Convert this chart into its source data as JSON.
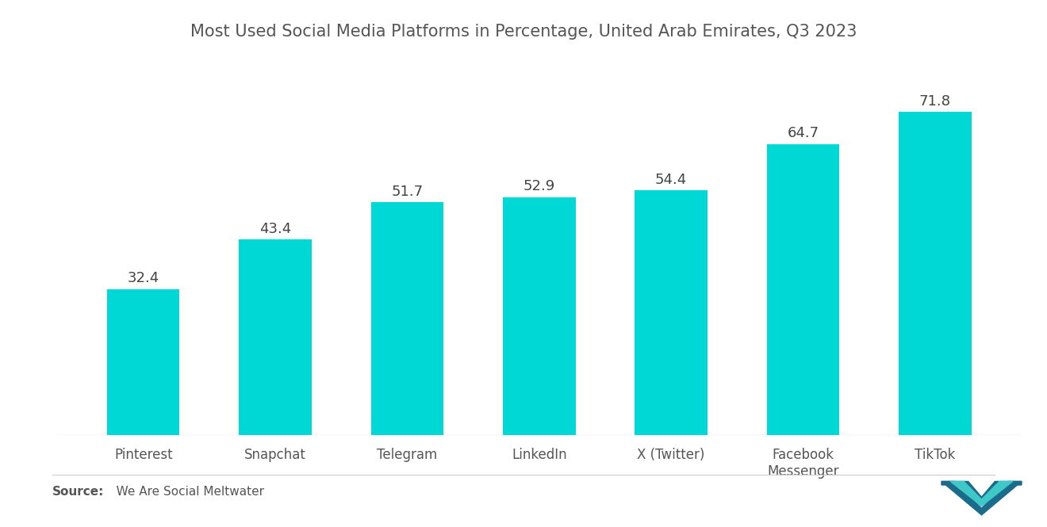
{
  "title": "Most Used Social Media Platforms in Percentage, United Arab Emirates, Q3 2023",
  "categories": [
    "Pinterest",
    "Snapchat",
    "Telegram",
    "LinkedIn",
    "X (Twitter)",
    "Facebook\nMessenger",
    "TikTok"
  ],
  "values": [
    32.4,
    43.4,
    51.7,
    52.9,
    54.4,
    64.7,
    71.8
  ],
  "bar_color": "#00D8D6",
  "background_color": "#ffffff",
  "title_color": "#555555",
  "label_color": "#444444",
  "tick_color": "#555555",
  "source_bold": "Source:",
  "source_text": "   We Are Social Meltwater",
  "title_fontsize": 15,
  "label_fontsize": 13,
  "tick_fontsize": 12,
  "source_fontsize": 11,
  "ylim": [
    0,
    85
  ]
}
